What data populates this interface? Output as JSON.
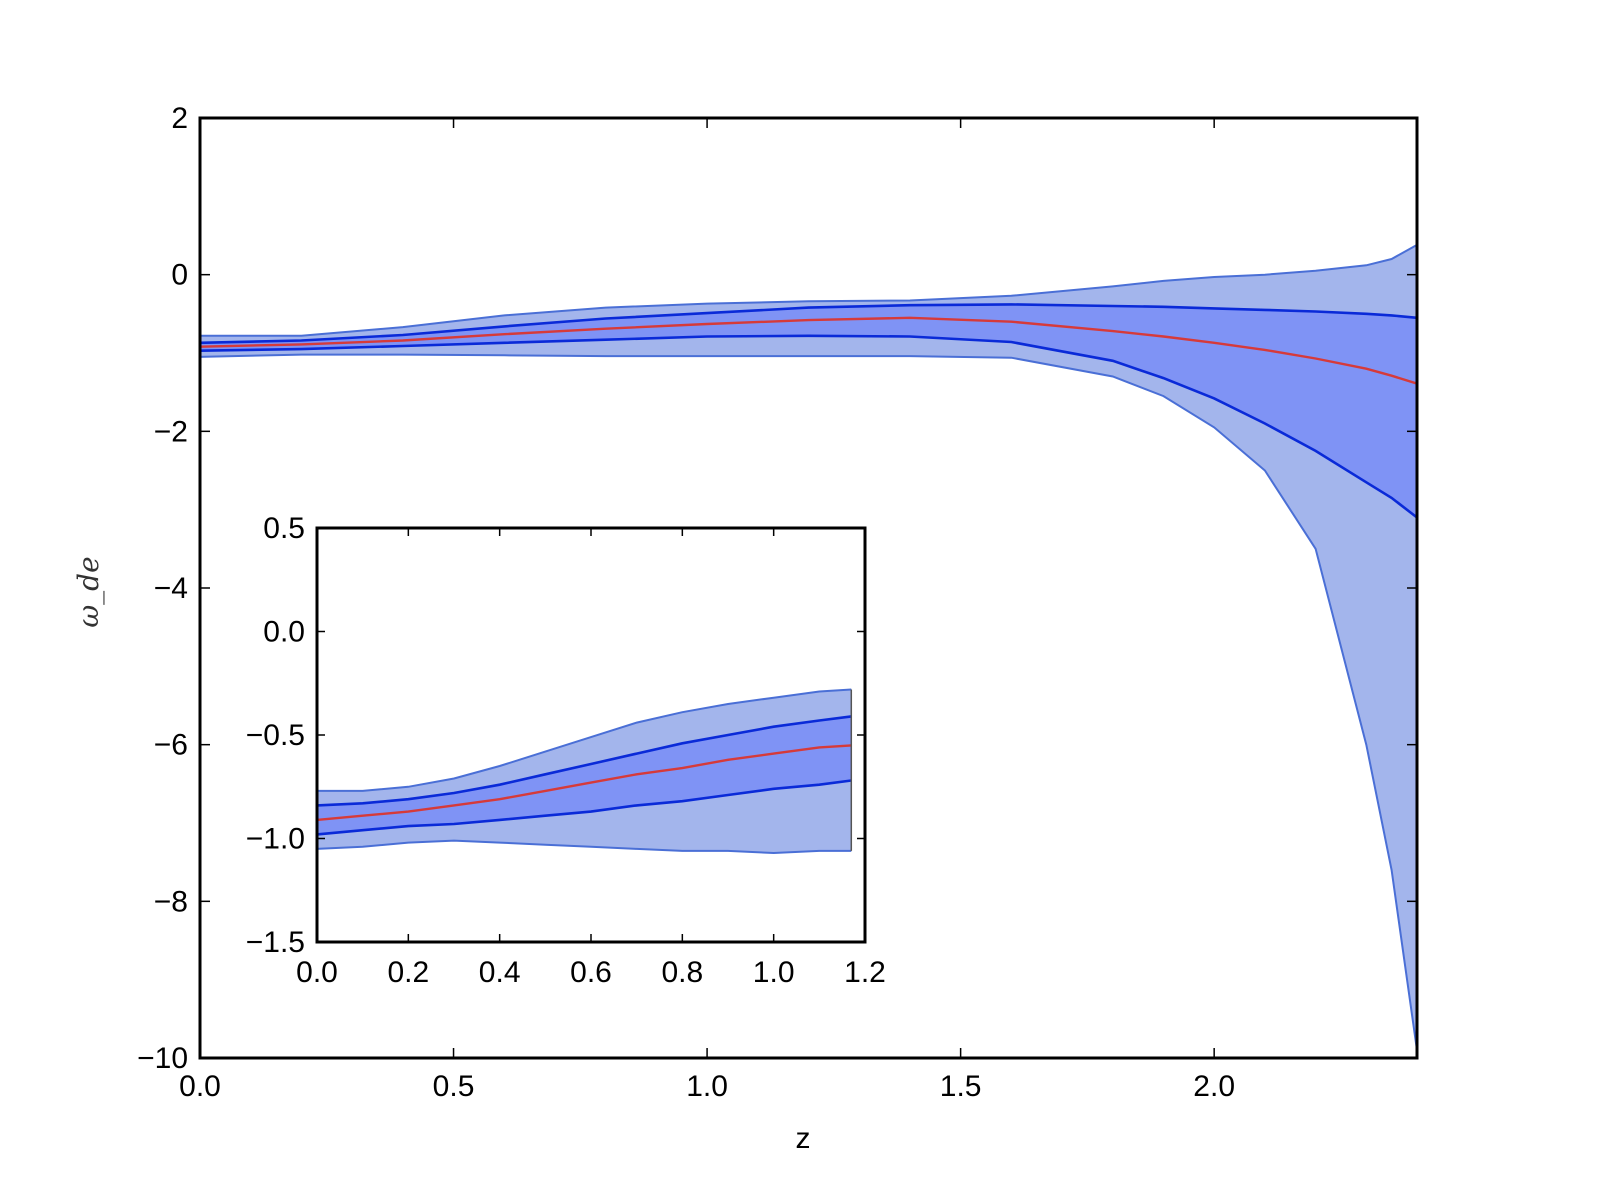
{
  "chart_data": [
    {
      "type": "area",
      "xlabel": "z",
      "ylabel": "ω_de",
      "xlim": [
        0.0,
        2.4
      ],
      "ylim": [
        -10,
        2
      ],
      "x_ticks": [
        0.0,
        0.5,
        1.0,
        1.5,
        2.0
      ],
      "x_tick_labels": [
        "0.0",
        "0.5",
        "1.0",
        "1.5",
        "2.0"
      ],
      "y_ticks": [
        2,
        0,
        -2,
        -4,
        -6,
        -8,
        -10
      ],
      "y_tick_labels": [
        "2",
        "0",
        "−2",
        "−4",
        "−6",
        "−8",
        "−10"
      ],
      "grid": false,
      "x": [
        0.0,
        0.2,
        0.4,
        0.6,
        0.8,
        1.0,
        1.2,
        1.4,
        1.6,
        1.8,
        1.9,
        2.0,
        2.1,
        2.2,
        2.3,
        2.35,
        2.4
      ],
      "series": [
        {
          "role": "2sigma-band",
          "color": "#a3b5ec",
          "edge": "#4a6fd6",
          "lower": [
            -1.05,
            -1.02,
            -1.02,
            -1.03,
            -1.04,
            -1.04,
            -1.04,
            -1.04,
            -1.06,
            -1.3,
            -1.55,
            -1.95,
            -2.5,
            -3.5,
            -6.0,
            -7.6,
            -9.9
          ],
          "upper": [
            -0.78,
            -0.78,
            -0.67,
            -0.52,
            -0.42,
            -0.37,
            -0.34,
            -0.33,
            -0.27,
            -0.15,
            -0.08,
            -0.03,
            0.0,
            0.05,
            0.12,
            0.2,
            0.38
          ]
        },
        {
          "role": "1sigma-band",
          "color": "#7f93f5",
          "edge": "#0a2ad8",
          "lower": [
            -0.97,
            -0.95,
            -0.91,
            -0.87,
            -0.83,
            -0.79,
            -0.78,
            -0.79,
            -0.86,
            -1.1,
            -1.32,
            -1.58,
            -1.9,
            -2.25,
            -2.65,
            -2.85,
            -3.1
          ],
          "upper": [
            -0.87,
            -0.84,
            -0.77,
            -0.66,
            -0.56,
            -0.49,
            -0.42,
            -0.39,
            -0.38,
            -0.4,
            -0.41,
            -0.43,
            -0.45,
            -0.47,
            -0.5,
            -0.52,
            -0.55
          ]
        },
        {
          "role": "mean",
          "color": "#d63a3a",
          "values": [
            -0.92,
            -0.89,
            -0.84,
            -0.76,
            -0.69,
            -0.63,
            -0.58,
            -0.55,
            -0.6,
            -0.72,
            -0.79,
            -0.87,
            -0.96,
            -1.07,
            -1.2,
            -1.29,
            -1.39
          ]
        }
      ]
    },
    {
      "type": "area",
      "role": "inset",
      "xlim": [
        0.0,
        1.2
      ],
      "ylim": [
        -1.5,
        0.5
      ],
      "x_ticks": [
        0.0,
        0.2,
        0.4,
        0.6,
        0.8,
        1.0,
        1.2
      ],
      "x_tick_labels": [
        "0.0",
        "0.2",
        "0.4",
        "0.6",
        "0.8",
        "1.0",
        "1.2"
      ],
      "y_ticks": [
        0.5,
        0.0,
        -0.5,
        -1.0,
        -1.5
      ],
      "y_tick_labels": [
        "0.5",
        "0.0",
        "−0.5",
        "−1.0",
        "−1.5"
      ],
      "grid": false,
      "x": [
        0.0,
        0.1,
        0.2,
        0.3,
        0.4,
        0.5,
        0.6,
        0.7,
        0.8,
        0.9,
        1.0,
        1.1,
        1.17
      ],
      "series": [
        {
          "role": "2sigma-band",
          "color": "#a3b5ec",
          "edge": "#4a6fd6",
          "lower": [
            -1.05,
            -1.04,
            -1.02,
            -1.01,
            -1.02,
            -1.03,
            -1.04,
            -1.05,
            -1.06,
            -1.06,
            -1.07,
            -1.06,
            -1.06
          ],
          "upper": [
            -0.77,
            -0.77,
            -0.75,
            -0.71,
            -0.65,
            -0.58,
            -0.51,
            -0.44,
            -0.39,
            -0.35,
            -0.32,
            -0.29,
            -0.28
          ]
        },
        {
          "role": "1sigma-band",
          "color": "#7f93f5",
          "edge": "#0a2ad8",
          "lower": [
            -0.98,
            -0.96,
            -0.94,
            -0.93,
            -0.91,
            -0.89,
            -0.87,
            -0.84,
            -0.82,
            -0.79,
            -0.76,
            -0.74,
            -0.72
          ],
          "upper": [
            -0.84,
            -0.83,
            -0.81,
            -0.78,
            -0.74,
            -0.69,
            -0.64,
            -0.59,
            -0.54,
            -0.5,
            -0.46,
            -0.43,
            -0.41
          ]
        },
        {
          "role": "mean",
          "color": "#d63a3a",
          "values": [
            -0.91,
            -0.89,
            -0.87,
            -0.84,
            -0.81,
            -0.77,
            -0.73,
            -0.69,
            -0.66,
            -0.62,
            -0.59,
            -0.56,
            -0.55
          ]
        }
      ]
    }
  ]
}
